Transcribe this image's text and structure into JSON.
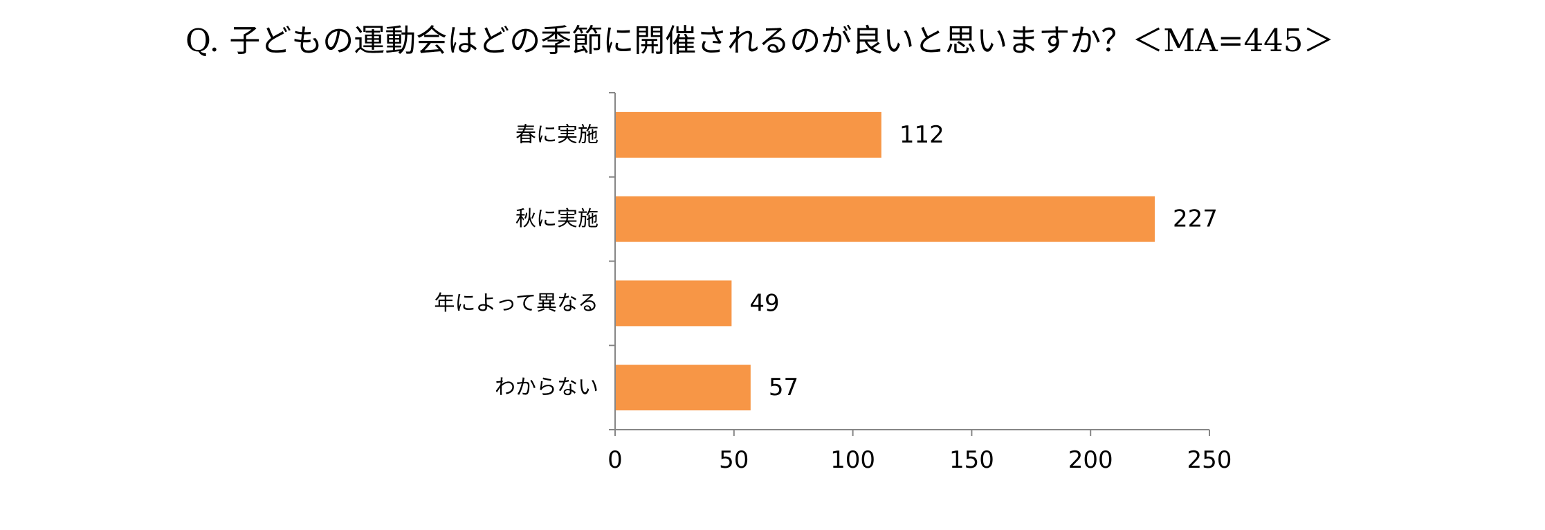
{
  "chart_data": {
    "type": "bar",
    "orientation": "horizontal",
    "title": "Q. 子どもの運動会はどの季節に開催されるのが良いと思いますか？＜MA=445＞",
    "categories": [
      "春に実施",
      "秋に実施",
      "年によって異なる",
      "わからない"
    ],
    "values": [
      112,
      227,
      49,
      57
    ],
    "xlim": [
      0,
      250
    ],
    "xticks": [
      0,
      50,
      100,
      150,
      200,
      250
    ],
    "xlabel": "",
    "ylabel": "",
    "grid": false,
    "legend": "none",
    "bar_color": "#F79646",
    "axis_color": "#868686",
    "data_labels": true
  }
}
